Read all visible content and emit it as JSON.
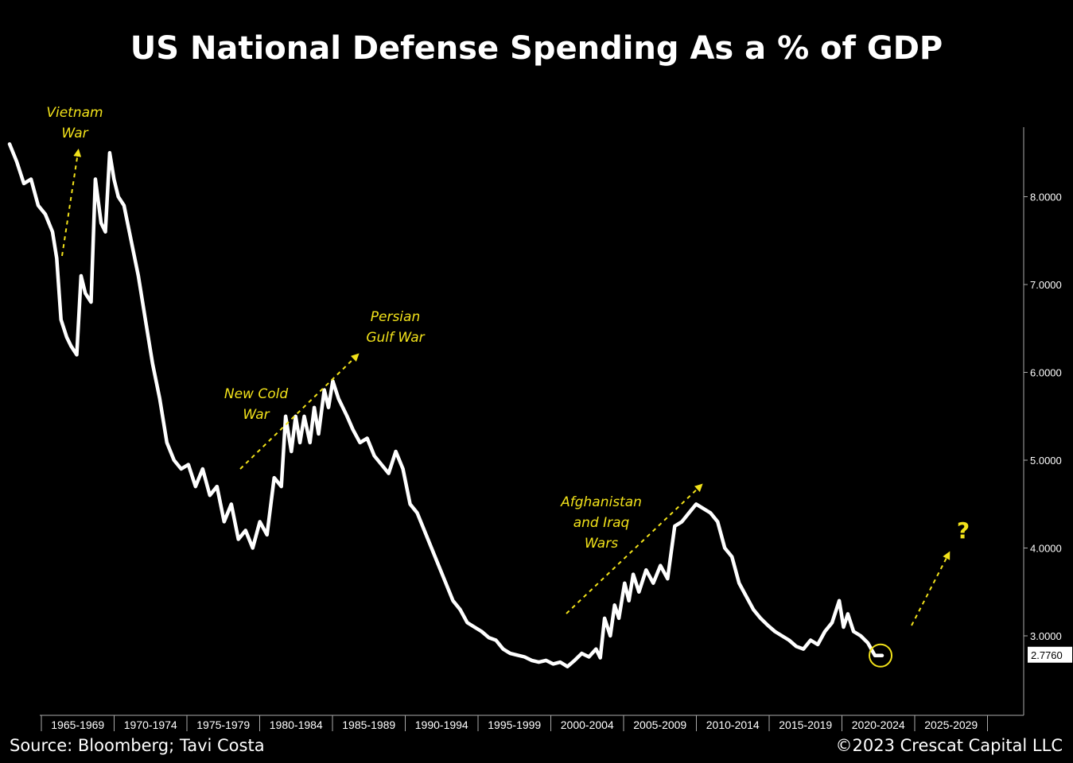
{
  "title": "US National Defense Spending As a % of GDP",
  "source": "Source: Bloomberg; Tavi Costa",
  "copyright": "©2023 Crescat Capital LLC",
  "colors": {
    "background": "#000000",
    "line": "#ffffff",
    "annotation": "#f2e21a"
  },
  "chart_data": {
    "type": "line",
    "title": "US National Defense Spending As a % of GDP",
    "xlabel": "",
    "ylabel": "",
    "categories": [
      "1965-1969",
      "1970-1974",
      "1975-1979",
      "1980-1984",
      "1985-1989",
      "1990-1994",
      "1995-1999",
      "2000-2004",
      "2005-2009",
      "2010-2014",
      "2015-2019",
      "2020-2024",
      "2025-2029"
    ],
    "x_range": [
      1962,
      2030
    ],
    "y_range": [
      2.2,
      8.8
    ],
    "y_ticks": [
      3,
      4,
      5,
      6,
      7,
      8
    ],
    "y_tick_labels": [
      "3.0000",
      "4.0000",
      "5.0000",
      "6.0000",
      "7.0000",
      "8.0000"
    ],
    "y_axis_position": "right",
    "grid": false,
    "last_value_label": "2.7760",
    "series": [
      {
        "x": [
          1962.0,
          1962.5,
          1963.0,
          1963.5,
          1964.0,
          1964.5,
          1965.0,
          1965.3,
          1965.6,
          1966.0,
          1966.3,
          1966.7,
          1967.0,
          1967.3,
          1967.7,
          1968.0,
          1968.4,
          1968.7,
          1969.0,
          1969.3,
          1969.6,
          1970.0,
          1970.5,
          1971.0,
          1971.5,
          1972.0,
          1972.5,
          1973.0,
          1973.5,
          1974.0,
          1974.5,
          1975.0,
          1975.5,
          1976.0,
          1976.5,
          1977.0,
          1977.5,
          1978.0,
          1978.5,
          1979.0,
          1979.5,
          1980.0,
          1980.5,
          1981.0,
          1981.3,
          1981.7,
          1982.0,
          1982.3,
          1982.6,
          1983.0,
          1983.3,
          1983.6,
          1984.0,
          1984.3,
          1984.6,
          1985.0,
          1985.3,
          1985.6,
          1986.0,
          1986.5,
          1987.0,
          1987.5,
          1988.0,
          1988.5,
          1989.0,
          1989.5,
          1990.0,
          1990.5,
          1991.0,
          1991.5,
          1992.0,
          1992.5,
          1993.0,
          1993.5,
          1994.0,
          1994.5,
          1995.0,
          1995.5,
          1996.0,
          1996.5,
          1997.0,
          1997.5,
          1998.0,
          1998.5,
          1999.0,
          1999.5,
          2000.0,
          2000.5,
          2001.0,
          2001.5,
          2002.0,
          2002.5,
          2003.0,
          2003.3,
          2003.6,
          2004.0,
          2004.3,
          2004.6,
          2005.0,
          2005.3,
          2005.6,
          2006.0,
          2006.5,
          2007.0,
          2007.5,
          2008.0,
          2008.5,
          2009.0,
          2009.5,
          2010.0,
          2010.5,
          2011.0,
          2011.5,
          2012.0,
          2012.5,
          2013.0,
          2013.5,
          2014.0,
          2014.5,
          2015.0,
          2015.5,
          2016.0,
          2016.5,
          2017.0,
          2017.5,
          2018.0,
          2018.5,
          2019.0,
          2019.5,
          2020.0,
          2020.3,
          2020.6,
          2021.0,
          2021.5,
          2022.0,
          2022.5,
          2023.0
        ],
        "values": [
          8.6,
          8.4,
          8.15,
          8.2,
          7.9,
          7.8,
          7.6,
          7.3,
          6.6,
          6.4,
          6.3,
          6.2,
          7.1,
          6.9,
          6.8,
          8.2,
          7.7,
          7.6,
          8.5,
          8.2,
          8.0,
          7.9,
          7.5,
          7.1,
          6.6,
          6.1,
          5.7,
          5.2,
          5.0,
          4.9,
          4.95,
          4.7,
          4.9,
          4.6,
          4.7,
          4.3,
          4.5,
          4.1,
          4.2,
          4.0,
          4.3,
          4.15,
          4.8,
          4.7,
          5.5,
          5.1,
          5.5,
          5.2,
          5.5,
          5.2,
          5.6,
          5.3,
          5.8,
          5.6,
          5.9,
          5.7,
          5.6,
          5.5,
          5.35,
          5.2,
          5.25,
          5.05,
          4.95,
          4.85,
          5.1,
          4.9,
          4.5,
          4.4,
          4.2,
          4.0,
          3.8,
          3.6,
          3.4,
          3.3,
          3.15,
          3.1,
          3.05,
          2.98,
          2.95,
          2.85,
          2.8,
          2.78,
          2.76,
          2.72,
          2.7,
          2.72,
          2.68,
          2.7,
          2.65,
          2.72,
          2.8,
          2.76,
          2.85,
          2.75,
          3.2,
          3.0,
          3.35,
          3.2,
          3.6,
          3.4,
          3.7,
          3.5,
          3.75,
          3.6,
          3.8,
          3.65,
          4.25,
          4.3,
          4.4,
          4.5,
          4.45,
          4.4,
          4.3,
          4.0,
          3.9,
          3.6,
          3.45,
          3.3,
          3.2,
          3.12,
          3.05,
          3.0,
          2.95,
          2.88,
          2.85,
          2.95,
          2.9,
          3.05,
          3.15,
          3.4,
          3.1,
          3.25,
          3.05,
          3.0,
          2.92,
          2.776,
          2.776
        ]
      }
    ],
    "annotations": [
      {
        "text_lines": [
          "Vietnam",
          "War"
        ]
      },
      {
        "text_lines": [
          "New Cold",
          "War"
        ]
      },
      {
        "text_lines": [
          "Persian",
          "Gulf War"
        ]
      },
      {
        "text_lines": [
          "Afghanistan",
          "and Iraq",
          "Wars"
        ]
      },
      {
        "text_lines": [
          "?"
        ]
      }
    ]
  }
}
